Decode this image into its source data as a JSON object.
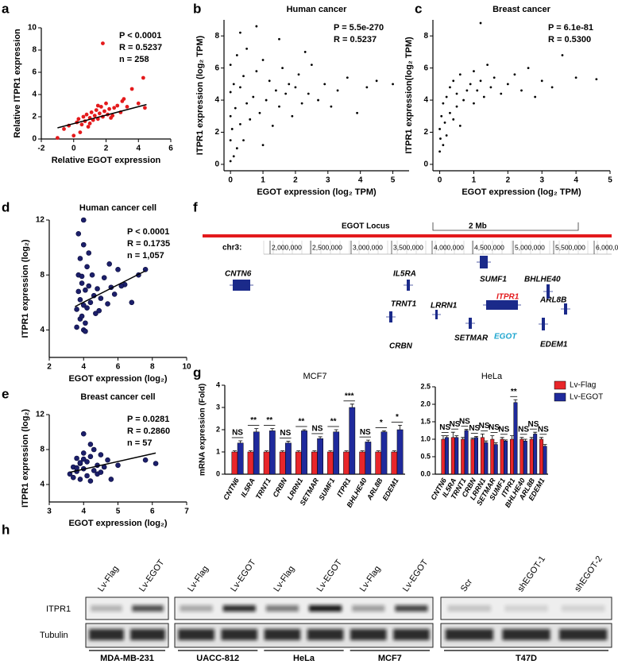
{
  "chart_data": [
    {
      "type": "scatter",
      "panel": "a",
      "color": "#e41a1c",
      "xlabel": "Relative EGOT expression",
      "ylabel": "Relative ITPR1 expression",
      "annotations": [
        "P < 0.0001",
        "R = 0.5237",
        "n = 258"
      ],
      "xlim": [
        -2,
        6
      ],
      "xticks": [
        -2,
        0,
        2,
        4,
        6
      ],
      "ylim": [
        0,
        10
      ],
      "yticks": [
        0,
        2,
        4,
        6,
        8,
        10
      ],
      "x": [
        -1.0,
        -0.6,
        -0.3,
        0.0,
        0.2,
        0.3,
        0.5,
        0.6,
        0.7,
        0.8,
        0.9,
        1.0,
        1.1,
        1.2,
        1.3,
        1.4,
        1.5,
        1.6,
        1.7,
        1.8,
        1.9,
        2.0,
        2.1,
        2.2,
        2.3,
        2.5,
        2.7,
        2.9,
        3.1,
        3.3,
        3.6,
        4.0,
        4.3,
        4.4,
        1.8,
        0.4,
        1.0,
        1.5,
        2.4,
        3.0
      ],
      "y": [
        0.1,
        0.9,
        1.2,
        0.3,
        1.5,
        1.8,
        1.3,
        2.0,
        1.6,
        2.2,
        1.1,
        1.9,
        2.4,
        1.7,
        2.1,
        2.6,
        1.8,
        2.3,
        2.9,
        2.0,
        2.5,
        3.2,
        2.2,
        2.7,
        1.9,
        2.8,
        3.0,
        2.4,
        3.6,
        2.9,
        4.5,
        3.2,
        5.5,
        2.8,
        8.6,
        0.6,
        1.4,
        3.0,
        2.1,
        3.4
      ],
      "trendline": {
        "x": [
          -1.0,
          4.5
        ],
        "y": [
          1.0,
          3.1
        ]
      }
    },
    {
      "type": "scatter",
      "panel": "b",
      "title": "Human cancer",
      "color": "#000000",
      "xlabel": "EGOT expression (log₂ TPM)",
      "ylabel": "ITPR1 expression (log₂ TPM)",
      "annotations": [
        "P = 5.5e-270",
        "R = 0.5237"
      ],
      "xlim": [
        -0.2,
        5.5
      ],
      "xticks": [
        0,
        1,
        2,
        3,
        4,
        5
      ],
      "ylim": [
        -0.4,
        9
      ],
      "yticks": [
        0,
        2,
        4,
        6,
        8
      ],
      "x": [
        0,
        0,
        0,
        0,
        0,
        0.05,
        0.1,
        0.1,
        0.15,
        0.2,
        0.2,
        0.3,
        0.3,
        0.4,
        0.4,
        0.5,
        0.5,
        0.6,
        0.7,
        0.8,
        0.9,
        1.0,
        1.0,
        1.1,
        1.2,
        1.3,
        1.4,
        1.5,
        1.6,
        1.7,
        1.8,
        1.9,
        2.0,
        2.1,
        2.2,
        2.4,
        2.5,
        2.7,
        2.9,
        3.1,
        3.3,
        3.6,
        3.9,
        4.2,
        4.5,
        5.0,
        0.3,
        0.8,
        1.5,
        2.3
      ],
      "y": [
        0.2,
        1.5,
        3.0,
        4.5,
        6.2,
        2.2,
        0.5,
        5.0,
        3.5,
        1.0,
        6.8,
        2.5,
        4.8,
        1.5,
        5.5,
        3.8,
        7.2,
        2.8,
        4.2,
        5.8,
        3.2,
        1.2,
        6.5,
        4.0,
        5.2,
        2.4,
        4.6,
        3.6,
        6.0,
        4.4,
        5.0,
        3.0,
        4.8,
        5.6,
        3.8,
        4.4,
        6.2,
        4.0,
        5.0,
        3.6,
        4.6,
        5.4,
        3.2,
        4.8,
        5.2,
        5.0,
        8.2,
        8.6,
        7.8,
        7.0
      ]
    },
    {
      "type": "scatter",
      "panel": "c",
      "title": "Breast cancer",
      "color": "#000000",
      "xlabel": "EGOT expression (log₂ TPM)",
      "ylabel": "ITPR1 expression(log₂ TPM)",
      "annotations": [
        "P = 6.1e-81",
        "R = 0.5300"
      ],
      "xlim": [
        -0.2,
        5
      ],
      "xticks": [
        0,
        1,
        2,
        3,
        4,
        5
      ],
      "ylim": [
        -0.4,
        9
      ],
      "yticks": [
        0,
        2,
        4,
        6,
        8
      ],
      "x": [
        0,
        0,
        0.02,
        0.05,
        0.1,
        0.1,
        0.15,
        0.2,
        0.2,
        0.3,
        0.3,
        0.4,
        0.4,
        0.5,
        0.5,
        0.6,
        0.6,
        0.7,
        0.8,
        0.9,
        1.0,
        1.0,
        1.1,
        1.2,
        1.3,
        1.4,
        1.5,
        1.6,
        1.8,
        2.0,
        2.2,
        2.4,
        2.6,
        2.8,
        3.0,
        3.3,
        3.6,
        4.0,
        4.6,
        1.2
      ],
      "y": [
        0.8,
        2.2,
        1.6,
        3.0,
        1.2,
        3.8,
        2.6,
        4.2,
        1.8,
        3.2,
        4.8,
        2.8,
        5.2,
        3.6,
        4.4,
        2.4,
        5.6,
        4.0,
        4.6,
        5.0,
        3.8,
        5.8,
        4.6,
        5.2,
        4.2,
        6.2,
        4.8,
        5.4,
        4.4,
        5.0,
        5.6,
        4.6,
        6.0,
        4.2,
        5.2,
        4.8,
        6.8,
        5.4,
        5.3,
        8.8
      ]
    },
    {
      "type": "scatter",
      "panel": "d",
      "title": "Human cancer cell",
      "color": "#1c1f6b",
      "xlabel": "EGOT expression (log₂)",
      "ylabel": "ITPR1 expression (log₂)",
      "annotations": [
        "P < 0.0001",
        "R = 0.1735",
        "n = 1,057"
      ],
      "xlim": [
        2,
        10
      ],
      "xticks": [
        2,
        4,
        6,
        8,
        10
      ],
      "ylim": [
        2,
        12
      ],
      "yticks": [
        4,
        8,
        12
      ],
      "x": [
        3.6,
        3.6,
        3.7,
        3.7,
        3.8,
        3.8,
        3.8,
        3.9,
        3.9,
        4.0,
        4.0,
        4.0,
        4.1,
        4.1,
        4.2,
        4.2,
        4.3,
        4.4,
        4.5,
        4.6,
        4.7,
        4.8,
        5.0,
        5.2,
        5.4,
        5.6,
        5.8,
        6.0,
        6.4,
        6.8,
        7.2,
        7.6,
        3.7,
        4.0,
        4.3,
        3.9,
        4.1,
        4.9,
        5.5,
        6.2
      ],
      "y": [
        4.2,
        5.5,
        6.8,
        8.0,
        4.8,
        6.2,
        9.2,
        5.0,
        7.4,
        10.2,
        5.8,
        12.0,
        4.5,
        6.9,
        8.6,
        5.6,
        7.2,
        6.0,
        8.0,
        6.5,
        5.2,
        7.0,
        6.3,
        7.8,
        5.9,
        7.1,
        6.6,
        8.4,
        7.3,
        6.0,
        8.0,
        8.4,
        11.0,
        4.0,
        9.6,
        7.9,
        3.9,
        5.4,
        8.8,
        7.2
      ],
      "trendline": {
        "x": [
          3.5,
          7.6
        ],
        "y": [
          5.7,
          8.3
        ]
      }
    },
    {
      "type": "scatter",
      "panel": "e",
      "title": "Breast cancer cell",
      "color": "#1c1f6b",
      "xlabel": "EGOT expression (log₂)",
      "ylabel": "ITPR1 expression (log₂)",
      "annotations": [
        "P = 0.0281",
        "R = 0.2860",
        "n = 57"
      ],
      "xlim": [
        3,
        7
      ],
      "xticks": [
        3,
        4,
        5,
        6,
        7
      ],
      "ylim": [
        2,
        12
      ],
      "yticks": [
        4,
        8,
        12
      ],
      "x": [
        3.6,
        3.7,
        3.7,
        3.8,
        3.8,
        3.9,
        3.9,
        4.0,
        4.0,
        4.0,
        4.1,
        4.1,
        4.2,
        4.2,
        4.3,
        4.3,
        4.4,
        4.4,
        4.5,
        4.6,
        4.7,
        4.8,
        5.0,
        5.8,
        6.1,
        3.8,
        4.0,
        4.2,
        4.5,
        3.9
      ],
      "y": [
        5.2,
        4.8,
        6.0,
        5.5,
        7.0,
        4.6,
        6.4,
        5.8,
        7.6,
        9.8,
        5.0,
        6.6,
        4.4,
        7.2,
        5.6,
        8.0,
        6.2,
        5.2,
        7.4,
        6.0,
        6.8,
        4.6,
        6.2,
        6.8,
        6.4,
        5.9,
        6.9,
        8.6,
        5.4,
        6.5
      ],
      "trendline": {
        "x": [
          3.6,
          6.1
        ],
        "y": [
          5.4,
          7.6
        ]
      }
    },
    {
      "type": "bar",
      "panel": "g",
      "title": "MCF7",
      "ylabel": "mRNA expression (Fold)",
      "categories": [
        "CNTN6",
        "IL5RA",
        "TRNT1",
        "CRBN",
        "LRRN1",
        "SETMAR",
        "SUMF1",
        "ITPR1",
        "BHLHE40",
        "ARL8B",
        "EDEM1"
      ],
      "ylim": [
        0,
        4
      ],
      "yticks": [
        0,
        1,
        2,
        3,
        4
      ],
      "series": [
        {
          "name": "Lv-Flag",
          "color": "#e8262a",
          "values": [
            1,
            1,
            1,
            1,
            1,
            1,
            1,
            1,
            1,
            1,
            1
          ],
          "errors": [
            0.05,
            0.05,
            0.05,
            0.05,
            0.05,
            0.05,
            0.05,
            0.05,
            0.05,
            0.05,
            0.05
          ]
        },
        {
          "name": "Lv-EGOT",
          "color": "#1f2a9c",
          "values": [
            1.4,
            1.9,
            1.95,
            1.4,
            1.95,
            1.6,
            1.9,
            3.0,
            1.45,
            1.9,
            2.0
          ],
          "errors": [
            0.1,
            0.15,
            0.1,
            0.08,
            0.05,
            0.08,
            0.1,
            0.15,
            0.08,
            0.05,
            0.2
          ]
        }
      ],
      "significance": [
        "NS",
        "**",
        "**",
        "NS",
        "**",
        "NS",
        "**",
        "***",
        "NS",
        "*",
        "*"
      ]
    },
    {
      "type": "bar",
      "title": "HeLa",
      "categories": [
        "CNTN6",
        "IL5RA",
        "TRNT1",
        "CRBN",
        "LRRN1",
        "SETMAR",
        "SUMF1",
        "ITPR1",
        "BHLHE40",
        "ARL8B",
        "EDEM1"
      ],
      "ylim": [
        0,
        2.5
      ],
      "yticks": [
        {
          "value": 0,
          "label": "0.0"
        },
        0.5,
        {
          "value": 1,
          "label": "1.0"
        },
        1.5,
        {
          "value": 2,
          "label": "2.0"
        },
        2.5
      ],
      "series": [
        {
          "color": "#e8262a",
          "values": [
            1.0,
            1.05,
            1.0,
            1.0,
            1.05,
            1.0,
            1.0,
            1.0,
            1.0,
            1.0,
            1.0
          ],
          "errors": [
            0.1,
            0.15,
            0.05,
            0.03,
            0.1,
            0.1,
            0.05,
            0.1,
            0.05,
            0.05,
            0.05
          ]
        },
        {
          "color": "#1f2a9c",
          "values": [
            1.05,
            1.05,
            1.25,
            1.05,
            0.9,
            0.85,
            0.95,
            2.05,
            0.95,
            1.15,
            0.8
          ],
          "errors": [
            0.05,
            0.05,
            0.03,
            0.03,
            0.05,
            0.05,
            0.03,
            0.08,
            0.05,
            0.05,
            0.05
          ]
        }
      ],
      "significance": [
        "NS",
        "NS",
        "NS",
        "NS",
        "NS",
        "NS",
        "NS",
        "**",
        "NS",
        "NS",
        "NS"
      ]
    }
  ],
  "locus": {
    "panel": "f",
    "title": "EGOT Locus",
    "scale": "2 Mb",
    "chrom": "chr3:",
    "positions": [
      "2,000,000",
      "2,500,000",
      "3,000,000",
      "3,500,000",
      "4,000,000",
      "4,500,000",
      "5,000,000",
      "5,500,000",
      "6,000,000"
    ],
    "genes": [
      "CNTN6",
      "IL5RA",
      "TRNT1",
      "CRBN",
      "LRRN1",
      "SUMF1",
      "BHLHE40",
      "ITPR1",
      "ARL8B",
      "SETMAR",
      "EGOT",
      "EDEM1"
    ]
  },
  "blot": {
    "panel": "h",
    "rows": [
      "ITPR1",
      "Tubulin"
    ],
    "panels": [
      {
        "lanes": [
          "Lv-Flag",
          "Lv-EGOT"
        ],
        "cells": [
          "MDA-MB-231"
        ]
      },
      {
        "lanes": [
          "Lv-Flag",
          "Lv-EGOT",
          "Lv-Flag",
          "Lv-EGOT",
          "Lv-Flag",
          "Lv-EGOT"
        ],
        "cells": [
          "UACC-812",
          "HeLa",
          "MCF7"
        ]
      },
      {
        "lanes": [
          "Scr",
          "shEGOT-1",
          "shEGOT-2"
        ],
        "cells": [
          "T47D"
        ]
      }
    ]
  }
}
